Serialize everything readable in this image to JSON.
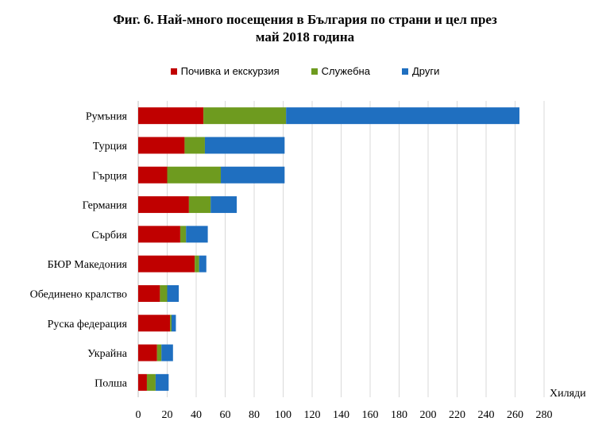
{
  "chart_data": {
    "type": "bar",
    "orientation": "horizontal",
    "stacked": true,
    "title_line1": "Фиг. 6. Най-много посещения в България по страни и цел през",
    "title_line2": "май 2018 година",
    "categories": [
      "Румъния",
      "Турция",
      "Гърция",
      "Германия",
      "Сърбия",
      "БЮР Македония",
      "Обединено кралство",
      "Руска федерация",
      "Украйна",
      "Полша"
    ],
    "series": [
      {
        "name": "Почивка и екскурзия",
        "color": "#c00000",
        "values": [
          45,
          32,
          20,
          35,
          29,
          39,
          15,
          22,
          13,
          6
        ]
      },
      {
        "name": "Служебна",
        "color": "#6e9b1f",
        "values": [
          57,
          14,
          37,
          15,
          4,
          3,
          5,
          1,
          3,
          6
        ]
      },
      {
        "name": "Други",
        "color": "#1f6fc0",
        "values": [
          161,
          55,
          44,
          18,
          15,
          5,
          8,
          3,
          8,
          9
        ]
      }
    ],
    "xlabel": "Хиляди",
    "xlim": [
      0,
      280
    ],
    "xticks": [
      "0",
      "20",
      "40",
      "60",
      "80",
      "100",
      "120",
      "140",
      "160",
      "180",
      "200",
      "220",
      "240",
      "260",
      "280"
    ],
    "grid": true
  }
}
